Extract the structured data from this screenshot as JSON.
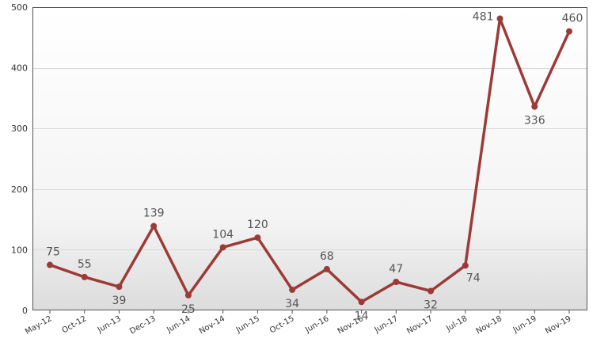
{
  "chart_data": {
    "type": "line",
    "title": "",
    "xlabel": "",
    "ylabel": "",
    "categories": [
      "May-12",
      "Oct-12",
      "Jun-13",
      "Dec-13",
      "Jun-14",
      "Nov-14",
      "Jun-15",
      "Oct-15",
      "Jun-16",
      "Nov-16",
      "Jun-17",
      "Nov-17",
      "Jul-18",
      "Nov-18",
      "Jun-19",
      "Nov-19"
    ],
    "series": [
      {
        "values": [
          75,
          55,
          39,
          139,
          25,
          104,
          120,
          34,
          68,
          14,
          47,
          32,
          74,
          481,
          336,
          460
        ],
        "color": "#9b3a36"
      }
    ],
    "ylim": [
      0,
      500
    ],
    "yticks": [
      0,
      100,
      200,
      300,
      400,
      500
    ],
    "grid": true,
    "legend": "none"
  }
}
